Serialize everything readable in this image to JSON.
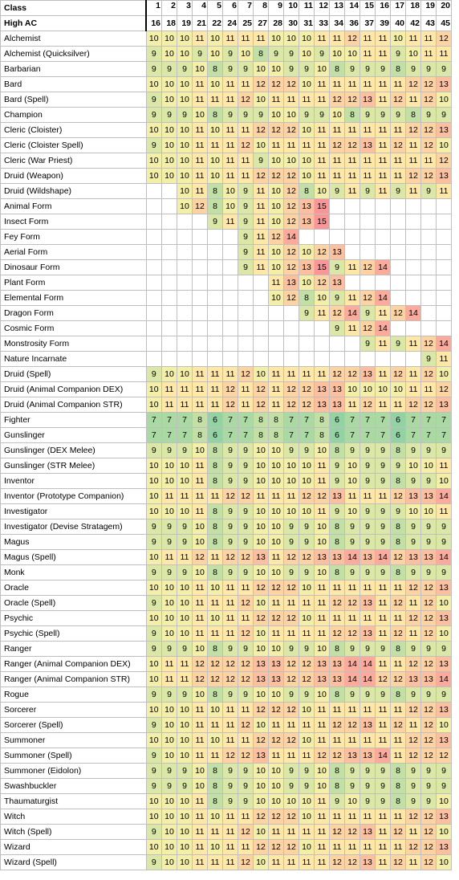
{
  "header": {
    "class_label": "Class",
    "high_ac_label": "High AC",
    "levels": [
      "1",
      "2",
      "3",
      "4",
      "5",
      "6",
      "7",
      "8",
      "9",
      "10",
      "11",
      "12",
      "13",
      "14",
      "15",
      "16",
      "17",
      "18",
      "19",
      "20"
    ],
    "high_ac": [
      "16",
      "18",
      "19",
      "21",
      "22",
      "24",
      "25",
      "27",
      "28",
      "30",
      "31",
      "33",
      "34",
      "36",
      "37",
      "39",
      "40",
      "42",
      "43",
      "45"
    ]
  },
  "color_scale": {
    "low": "#63be7b",
    "mid": "#ffeb84",
    "high": "#f8696b",
    "min": 6,
    "max": 15
  },
  "rows": [
    {
      "name": "Alchemist",
      "values": [
        10,
        10,
        10,
        11,
        10,
        11,
        11,
        11,
        10,
        10,
        10,
        11,
        11,
        12,
        11,
        11,
        10,
        11,
        11,
        12
      ]
    },
    {
      "name": "Alchemist (Quicksilver)",
      "values": [
        9,
        10,
        10,
        9,
        10,
        9,
        10,
        8,
        9,
        9,
        10,
        9,
        10,
        10,
        11,
        11,
        9,
        10,
        11,
        11
      ]
    },
    {
      "name": "Barbarian",
      "values": [
        9,
        9,
        9,
        10,
        8,
        9,
        9,
        10,
        10,
        9,
        9,
        10,
        8,
        9,
        9,
        9,
        8,
        9,
        9,
        9
      ]
    },
    {
      "name": "Bard",
      "values": [
        10,
        10,
        10,
        11,
        10,
        11,
        11,
        12,
        12,
        12,
        10,
        11,
        11,
        11,
        11,
        11,
        11,
        12,
        12,
        13
      ]
    },
    {
      "name": "Bard (Spell)",
      "values": [
        9,
        10,
        10,
        11,
        11,
        11,
        12,
        10,
        11,
        11,
        11,
        11,
        12,
        12,
        13,
        11,
        12,
        11,
        12,
        10
      ]
    },
    {
      "name": "Champion",
      "values": [
        9,
        9,
        9,
        10,
        8,
        9,
        9,
        9,
        10,
        10,
        9,
        9,
        10,
        8,
        9,
        9,
        9,
        8,
        9,
        9
      ]
    },
    {
      "name": "Cleric (Cloister)",
      "values": [
        10,
        10,
        10,
        11,
        10,
        11,
        11,
        12,
        12,
        12,
        10,
        11,
        11,
        11,
        11,
        11,
        11,
        12,
        12,
        13
      ]
    },
    {
      "name": "Cleric (Cloister Spell)",
      "values": [
        9,
        10,
        10,
        11,
        11,
        11,
        12,
        10,
        11,
        11,
        11,
        11,
        12,
        12,
        13,
        11,
        12,
        11,
        12,
        10
      ]
    },
    {
      "name": "Cleric (War Priest)",
      "values": [
        10,
        10,
        10,
        11,
        10,
        11,
        11,
        9,
        10,
        10,
        10,
        11,
        11,
        11,
        11,
        11,
        11,
        11,
        11,
        12
      ]
    },
    {
      "name": "Druid (Weapon)",
      "values": [
        10,
        10,
        10,
        11,
        10,
        11,
        11,
        12,
        12,
        12,
        10,
        11,
        11,
        11,
        11,
        11,
        11,
        12,
        12,
        13
      ]
    },
    {
      "name": "Druid (Wildshape)",
      "values": [
        null,
        null,
        10,
        11,
        8,
        10,
        9,
        11,
        10,
        12,
        8,
        10,
        9,
        11,
        9,
        11,
        9,
        11,
        9,
        11
      ]
    },
    {
      "name": "Animal Form",
      "values": [
        null,
        null,
        10,
        12,
        8,
        10,
        9,
        11,
        10,
        12,
        13,
        15,
        null,
        null,
        null,
        null,
        null,
        null,
        null,
        null
      ]
    },
    {
      "name": "Insect Form",
      "values": [
        null,
        null,
        null,
        null,
        9,
        11,
        9,
        11,
        10,
        12,
        13,
        15,
        null,
        null,
        null,
        null,
        null,
        null,
        null,
        null
      ]
    },
    {
      "name": "Fey Form",
      "values": [
        null,
        null,
        null,
        null,
        null,
        null,
        9,
        11,
        12,
        14,
        null,
        null,
        null,
        null,
        null,
        null,
        null,
        null,
        null,
        null
      ]
    },
    {
      "name": "Aerial Form",
      "values": [
        null,
        null,
        null,
        null,
        null,
        null,
        9,
        11,
        10,
        12,
        10,
        12,
        13,
        null,
        null,
        null,
        null,
        null,
        null,
        null
      ]
    },
    {
      "name": "Dinosaur Form",
      "values": [
        null,
        null,
        null,
        null,
        null,
        null,
        9,
        11,
        10,
        12,
        13,
        15,
        9,
        11,
        12,
        14,
        null,
        null,
        null,
        null
      ]
    },
    {
      "name": "Plant Form",
      "values": [
        null,
        null,
        null,
        null,
        null,
        null,
        null,
        null,
        11,
        13,
        10,
        12,
        13,
        null,
        null,
        null,
        null,
        null,
        null,
        null
      ]
    },
    {
      "name": "Elemental Form",
      "values": [
        null,
        null,
        null,
        null,
        null,
        null,
        null,
        null,
        10,
        12,
        8,
        10,
        9,
        11,
        12,
        14,
        null,
        null,
        null,
        null
      ]
    },
    {
      "name": "Dragon Form",
      "values": [
        null,
        null,
        null,
        null,
        null,
        null,
        null,
        null,
        null,
        null,
        9,
        11,
        12,
        14,
        9,
        11,
        12,
        14,
        null,
        null
      ]
    },
    {
      "name": "Cosmic Form",
      "values": [
        null,
        null,
        null,
        null,
        null,
        null,
        null,
        null,
        null,
        null,
        null,
        null,
        9,
        11,
        12,
        14,
        null,
        null,
        null,
        null
      ]
    },
    {
      "name": "Monstrosity Form",
      "values": [
        null,
        null,
        null,
        null,
        null,
        null,
        null,
        null,
        null,
        null,
        null,
        null,
        null,
        null,
        9,
        11,
        9,
        11,
        12,
        14
      ]
    },
    {
      "name": "Nature Incarnate",
      "values": [
        null,
        null,
        null,
        null,
        null,
        null,
        null,
        null,
        null,
        null,
        null,
        null,
        null,
        null,
        null,
        null,
        null,
        null,
        9,
        11
      ]
    },
    {
      "name": "Druid (Spell)",
      "values": [
        9,
        10,
        10,
        11,
        11,
        11,
        12,
        10,
        11,
        11,
        11,
        11,
        12,
        12,
        13,
        11,
        12,
        11,
        12,
        10
      ]
    },
    {
      "name": "Druid (Animal Companion DEX)",
      "values": [
        10,
        11,
        11,
        11,
        11,
        12,
        11,
        12,
        11,
        12,
        12,
        13,
        13,
        10,
        10,
        10,
        10,
        11,
        11,
        12
      ]
    },
    {
      "name": "Druid (Animal Companion STR)",
      "values": [
        10,
        11,
        11,
        11,
        11,
        12,
        11,
        12,
        11,
        12,
        12,
        13,
        13,
        11,
        12,
        11,
        11,
        12,
        12,
        13
      ]
    },
    {
      "name": "Fighter",
      "values": [
        7,
        7,
        7,
        8,
        6,
        7,
        7,
        8,
        8,
        7,
        7,
        8,
        6,
        7,
        7,
        7,
        6,
        7,
        7,
        7
      ]
    },
    {
      "name": "Gunslinger",
      "values": [
        7,
        7,
        7,
        8,
        6,
        7,
        7,
        8,
        8,
        7,
        7,
        8,
        6,
        7,
        7,
        7,
        6,
        7,
        7,
        7
      ]
    },
    {
      "name": "Gunslinger (DEX Melee)",
      "values": [
        9,
        9,
        9,
        10,
        8,
        9,
        9,
        10,
        10,
        9,
        9,
        10,
        8,
        9,
        9,
        9,
        8,
        9,
        9,
        9
      ]
    },
    {
      "name": "Gunslinger (STR Melee)",
      "values": [
        10,
        10,
        10,
        11,
        8,
        9,
        9,
        10,
        10,
        10,
        10,
        11,
        9,
        10,
        9,
        9,
        9,
        10,
        10,
        11
      ]
    },
    {
      "name": "Inventor",
      "values": [
        10,
        10,
        10,
        11,
        8,
        9,
        9,
        10,
        10,
        10,
        10,
        11,
        9,
        10,
        9,
        9,
        8,
        9,
        9,
        10
      ]
    },
    {
      "name": "Inventor (Prototype Companion)",
      "values": [
        10,
        11,
        11,
        11,
        11,
        12,
        12,
        11,
        11,
        11,
        12,
        12,
        13,
        11,
        11,
        11,
        12,
        13,
        13,
        14
      ]
    },
    {
      "name": "Investigator",
      "values": [
        10,
        10,
        10,
        11,
        8,
        9,
        9,
        10,
        10,
        10,
        10,
        11,
        9,
        10,
        9,
        9,
        9,
        10,
        10,
        11
      ]
    },
    {
      "name": "Investigator (Devise Stratagem)",
      "values": [
        9,
        9,
        9,
        10,
        8,
        9,
        9,
        10,
        10,
        9,
        9,
        10,
        8,
        9,
        9,
        9,
        8,
        9,
        9,
        9
      ]
    },
    {
      "name": "Magus",
      "values": [
        9,
        9,
        9,
        10,
        8,
        9,
        9,
        10,
        10,
        9,
        9,
        10,
        8,
        9,
        9,
        9,
        8,
        9,
        9,
        9
      ]
    },
    {
      "name": "Magus (Spell)",
      "values": [
        10,
        11,
        11,
        12,
        11,
        12,
        12,
        13,
        11,
        12,
        12,
        13,
        13,
        14,
        13,
        14,
        12,
        13,
        13,
        14
      ]
    },
    {
      "name": "Monk",
      "values": [
        9,
        9,
        9,
        10,
        8,
        9,
        9,
        10,
        10,
        9,
        9,
        10,
        8,
        9,
        9,
        9,
        8,
        9,
        9,
        9
      ]
    },
    {
      "name": "Oracle",
      "values": [
        10,
        10,
        10,
        11,
        10,
        11,
        11,
        12,
        12,
        12,
        10,
        11,
        11,
        11,
        11,
        11,
        11,
        12,
        12,
        13
      ]
    },
    {
      "name": "Oracle (Spell)",
      "values": [
        9,
        10,
        10,
        11,
        11,
        11,
        12,
        10,
        11,
        11,
        11,
        11,
        12,
        12,
        13,
        11,
        12,
        11,
        12,
        10
      ]
    },
    {
      "name": "Psychic",
      "values": [
        10,
        10,
        10,
        11,
        10,
        11,
        11,
        12,
        12,
        12,
        10,
        11,
        11,
        11,
        11,
        11,
        11,
        12,
        12,
        13
      ]
    },
    {
      "name": "Psychic (Spell)",
      "values": [
        9,
        10,
        10,
        11,
        11,
        11,
        12,
        10,
        11,
        11,
        11,
        11,
        12,
        12,
        13,
        11,
        12,
        11,
        12,
        10
      ]
    },
    {
      "name": "Ranger",
      "values": [
        9,
        9,
        9,
        10,
        8,
        9,
        9,
        10,
        10,
        9,
        9,
        10,
        8,
        9,
        9,
        9,
        8,
        9,
        9,
        9
      ]
    },
    {
      "name": "Ranger (Animal Companion DEX)",
      "values": [
        10,
        11,
        11,
        12,
        12,
        12,
        12,
        13,
        13,
        12,
        12,
        13,
        13,
        14,
        14,
        11,
        11,
        12,
        12,
        13
      ]
    },
    {
      "name": "Ranger (Animal Companion STR)",
      "values": [
        10,
        11,
        11,
        12,
        12,
        12,
        12,
        13,
        13,
        12,
        12,
        13,
        13,
        14,
        14,
        12,
        12,
        13,
        13,
        14
      ]
    },
    {
      "name": "Rogue",
      "values": [
        9,
        9,
        9,
        10,
        8,
        9,
        9,
        10,
        10,
        9,
        9,
        10,
        8,
        9,
        9,
        9,
        8,
        9,
        9,
        9
      ]
    },
    {
      "name": "Sorcerer",
      "values": [
        10,
        10,
        10,
        11,
        10,
        11,
        11,
        12,
        12,
        12,
        10,
        11,
        11,
        11,
        11,
        11,
        11,
        12,
        12,
        13
      ]
    },
    {
      "name": "Sorcerer (Spell)",
      "values": [
        9,
        10,
        10,
        11,
        11,
        11,
        12,
        10,
        11,
        11,
        11,
        11,
        12,
        12,
        13,
        11,
        12,
        11,
        12,
        10
      ]
    },
    {
      "name": "Summoner",
      "values": [
        10,
        10,
        10,
        11,
        10,
        11,
        11,
        12,
        12,
        12,
        10,
        11,
        11,
        11,
        11,
        11,
        11,
        12,
        12,
        13
      ]
    },
    {
      "name": "Summoner (Spell)",
      "values": [
        9,
        10,
        10,
        11,
        11,
        12,
        12,
        13,
        11,
        11,
        11,
        12,
        12,
        13,
        13,
        14,
        11,
        12,
        12,
        12
      ]
    },
    {
      "name": "Summoner (Eidolon)",
      "values": [
        9,
        9,
        9,
        10,
        8,
        9,
        9,
        10,
        10,
        9,
        9,
        10,
        8,
        9,
        9,
        9,
        8,
        9,
        9,
        9
      ]
    },
    {
      "name": "Swashbuckler",
      "values": [
        9,
        9,
        9,
        10,
        8,
        9,
        9,
        10,
        10,
        9,
        9,
        10,
        8,
        9,
        9,
        9,
        8,
        9,
        9,
        9
      ]
    },
    {
      "name": "Thaumaturgist",
      "values": [
        10,
        10,
        10,
        11,
        8,
        9,
        9,
        10,
        10,
        10,
        10,
        11,
        9,
        10,
        9,
        9,
        8,
        9,
        9,
        10
      ]
    },
    {
      "name": "Witch",
      "values": [
        10,
        10,
        10,
        11,
        10,
        11,
        11,
        12,
        12,
        12,
        10,
        11,
        11,
        11,
        11,
        11,
        11,
        12,
        12,
        13
      ]
    },
    {
      "name": "Witch (Spell)",
      "values": [
        9,
        10,
        10,
        11,
        11,
        11,
        12,
        10,
        11,
        11,
        11,
        11,
        12,
        12,
        13,
        11,
        12,
        11,
        12,
        10
      ]
    },
    {
      "name": "Wizard",
      "values": [
        10,
        10,
        10,
        11,
        10,
        11,
        11,
        12,
        12,
        12,
        10,
        11,
        11,
        11,
        11,
        11,
        11,
        12,
        12,
        13
      ]
    },
    {
      "name": "Wizard (Spell)",
      "values": [
        9,
        10,
        10,
        11,
        11,
        11,
        12,
        10,
        11,
        11,
        11,
        11,
        12,
        12,
        13,
        11,
        12,
        11,
        12,
        10
      ]
    }
  ]
}
